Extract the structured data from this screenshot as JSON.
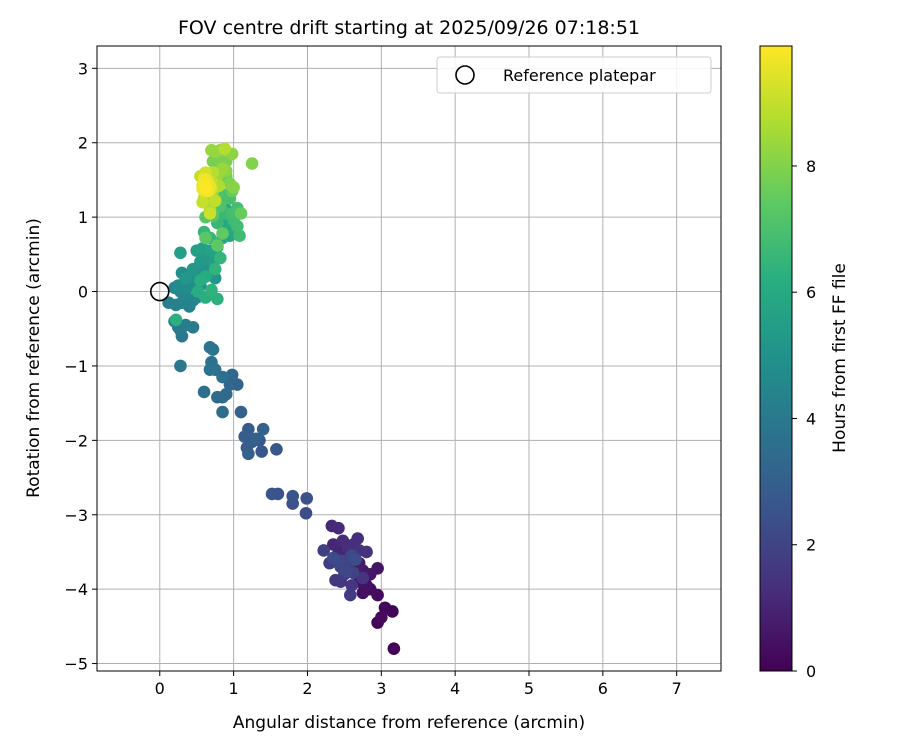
{
  "chart_data": {
    "type": "scatter",
    "title": "FOV centre drift starting at 2025/09/26 07:18:51",
    "xlabel": "Angular distance from reference (arcmin)",
    "ylabel": "Rotation from reference (arcmin)",
    "xlim": [
      -0.85,
      7.6
    ],
    "ylim": [
      -5.1,
      3.3
    ],
    "xticks": [
      0,
      1,
      2,
      3,
      4,
      5,
      6,
      7
    ],
    "yticks": [
      -5,
      -4,
      -3,
      -2,
      -1,
      0,
      1,
      2,
      3
    ],
    "grid": true,
    "legend": {
      "placement": "upper-right",
      "entries": [
        "Reference platepar"
      ]
    },
    "reference_point": {
      "x": 0,
      "y": 0
    },
    "colorbar": {
      "label": "Hours from first FF file",
      "min": 0,
      "max": 9.9,
      "ticks": [
        0,
        2,
        4,
        6,
        8
      ],
      "colormap": "viridis"
    },
    "points": [
      [
        3.17,
        -4.8,
        0.05
      ],
      [
        2.95,
        -4.45,
        0.1
      ],
      [
        3.15,
        -4.3,
        0.15
      ],
      [
        3.05,
        -4.25,
        0.2
      ],
      [
        3.0,
        -4.38,
        0.25
      ],
      [
        2.95,
        -4.08,
        0.3
      ],
      [
        2.85,
        -4.0,
        0.35
      ],
      [
        2.75,
        -4.05,
        0.4
      ],
      [
        2.8,
        -3.95,
        0.45
      ],
      [
        2.7,
        -3.9,
        0.5
      ],
      [
        2.95,
        -3.72,
        0.55
      ],
      [
        2.85,
        -3.8,
        0.6
      ],
      [
        2.75,
        -3.75,
        0.65
      ],
      [
        2.7,
        -3.65,
        0.7
      ],
      [
        2.65,
        -3.7,
        0.75
      ],
      [
        2.6,
        -3.6,
        0.8
      ],
      [
        2.55,
        -3.55,
        0.85
      ],
      [
        2.5,
        -3.5,
        0.9
      ],
      [
        2.45,
        -3.45,
        0.95
      ],
      [
        2.4,
        -3.55,
        1.0
      ],
      [
        2.35,
        -3.4,
        1.05
      ],
      [
        2.33,
        -3.15,
        1.1
      ],
      [
        2.42,
        -3.18,
        1.15
      ],
      [
        2.48,
        -3.35,
        1.2
      ],
      [
        2.55,
        -3.45,
        1.25
      ],
      [
        2.68,
        -3.32,
        1.3
      ],
      [
        2.62,
        -3.4,
        1.35
      ],
      [
        2.7,
        -3.48,
        1.4
      ],
      [
        2.8,
        -3.5,
        1.45
      ],
      [
        2.75,
        -3.85,
        1.5
      ],
      [
        2.6,
        -3.95,
        1.55
      ],
      [
        2.45,
        -3.9,
        1.6
      ],
      [
        2.38,
        -3.88,
        1.65
      ],
      [
        2.58,
        -4.08,
        1.7
      ],
      [
        2.5,
        -3.8,
        1.75
      ],
      [
        2.3,
        -3.65,
        1.8
      ],
      [
        2.22,
        -3.48,
        1.85
      ],
      [
        2.55,
        -3.68,
        1.9
      ],
      [
        2.62,
        -3.78,
        1.95
      ],
      [
        2.45,
        -3.7,
        2.0
      ],
      [
        2.5,
        -3.62,
        2.05
      ],
      [
        2.52,
        -3.76,
        2.1
      ],
      [
        2.42,
        -3.62,
        2.15
      ],
      [
        2.6,
        -3.55,
        2.2
      ],
      [
        2.35,
        -3.58,
        2.25
      ],
      [
        2.65,
        -3.6,
        2.3
      ],
      [
        1.98,
        -2.98,
        2.35
      ],
      [
        1.99,
        -2.78,
        2.4
      ],
      [
        1.8,
        -2.85,
        2.45
      ],
      [
        1.8,
        -2.75,
        2.5
      ],
      [
        1.6,
        -2.72,
        2.55
      ],
      [
        1.52,
        -2.72,
        2.6
      ],
      [
        1.58,
        -2.12,
        2.65
      ],
      [
        1.38,
        -2.15,
        2.7
      ],
      [
        1.35,
        -2.0,
        2.75
      ],
      [
        1.25,
        -2.02,
        2.8
      ],
      [
        1.2,
        -1.85,
        2.85
      ],
      [
        1.15,
        -1.95,
        2.9
      ],
      [
        1.18,
        -2.1,
        2.95
      ],
      [
        1.2,
        -2.18,
        3.0
      ],
      [
        1.3,
        -1.98,
        3.05
      ],
      [
        1.4,
        -1.85,
        3.1
      ],
      [
        1.1,
        -1.62,
        3.15
      ],
      [
        1.05,
        -1.25,
        3.2
      ],
      [
        0.95,
        -1.25,
        3.25
      ],
      [
        0.98,
        -1.12,
        3.3
      ],
      [
        0.9,
        -1.38,
        3.35
      ],
      [
        0.85,
        -1.42,
        3.4
      ],
      [
        0.78,
        -1.42,
        3.45
      ],
      [
        0.85,
        -1.62,
        3.5
      ],
      [
        0.6,
        -1.35,
        3.55
      ],
      [
        0.85,
        -1.15,
        3.6
      ],
      [
        0.75,
        -1.05,
        3.65
      ],
      [
        0.7,
        -0.95,
        3.7
      ],
      [
        0.68,
        -1.05,
        3.75
      ],
      [
        0.72,
        -0.78,
        3.8
      ],
      [
        0.68,
        -0.75,
        3.85
      ],
      [
        0.28,
        -1.0,
        3.9
      ],
      [
        0.3,
        -0.6,
        3.95
      ],
      [
        0.28,
        -0.52,
        4.0
      ],
      [
        0.45,
        -0.48,
        4.05
      ],
      [
        0.25,
        -0.48,
        4.1
      ],
      [
        0.35,
        -0.45,
        4.15
      ],
      [
        0.2,
        -0.4,
        4.2
      ],
      [
        0.12,
        -0.15,
        4.25
      ],
      [
        0.22,
        -0.18,
        4.3
      ],
      [
        0.3,
        -0.15,
        4.35
      ],
      [
        0.4,
        -0.2,
        4.4
      ],
      [
        0.45,
        -0.12,
        4.45
      ],
      [
        0.5,
        -0.08,
        4.5
      ],
      [
        0.35,
        -0.05,
        4.55
      ],
      [
        0.28,
        0.0,
        4.6
      ],
      [
        0.2,
        0.05,
        4.65
      ],
      [
        0.25,
        0.08,
        4.7
      ],
      [
        0.38,
        0.05,
        4.75
      ],
      [
        0.45,
        0.12,
        4.8
      ],
      [
        0.55,
        0.08,
        4.85
      ],
      [
        0.3,
        0.25,
        4.9
      ],
      [
        0.42,
        0.2,
        4.95
      ],
      [
        0.5,
        0.28,
        5.0
      ],
      [
        0.6,
        0.35,
        5.05
      ],
      [
        0.68,
        0.22,
        5.1
      ],
      [
        0.75,
        0.18,
        5.15
      ],
      [
        0.35,
        0.18,
        5.2
      ],
      [
        0.45,
        0.3,
        5.25
      ],
      [
        0.55,
        0.4,
        5.3
      ],
      [
        0.62,
        0.45,
        5.35
      ],
      [
        0.72,
        0.4,
        5.4
      ],
      [
        0.8,
        0.45,
        5.45
      ],
      [
        0.28,
        0.52,
        5.5
      ],
      [
        0.5,
        0.55,
        5.55
      ],
      [
        0.58,
        0.58,
        5.6
      ],
      [
        0.68,
        0.55,
        5.65
      ],
      [
        0.78,
        0.6,
        5.7
      ],
      [
        0.85,
        0.72,
        5.75
      ],
      [
        0.95,
        0.75,
        5.8
      ],
      [
        0.92,
        0.9,
        5.85
      ],
      [
        0.85,
        1.0,
        5.9
      ],
      [
        0.9,
        1.1,
        5.95
      ],
      [
        0.95,
        0.85,
        6.0
      ],
      [
        0.62,
        0.2,
        6.05
      ],
      [
        0.55,
        0.15,
        6.1
      ],
      [
        0.52,
        0.0,
        6.15
      ],
      [
        0.62,
        -0.08,
        6.2
      ],
      [
        0.22,
        -0.38,
        6.25
      ],
      [
        0.78,
        -0.1,
        6.3
      ],
      [
        0.7,
        0.02,
        6.35
      ],
      [
        0.75,
        0.3,
        6.4
      ],
      [
        0.82,
        0.45,
        6.45
      ],
      [
        0.68,
        0.72,
        6.5
      ],
      [
        0.6,
        0.8,
        6.55
      ],
      [
        0.78,
        0.92,
        6.6
      ],
      [
        0.88,
        1.05,
        6.65
      ],
      [
        1.0,
        0.95,
        6.7
      ],
      [
        1.08,
        0.75,
        6.75
      ],
      [
        1.05,
        0.88,
        6.8
      ],
      [
        0.98,
        1.05,
        6.85
      ],
      [
        1.05,
        1.12,
        6.9
      ],
      [
        0.95,
        1.25,
        6.95
      ],
      [
        0.88,
        1.3,
        7.0
      ],
      [
        0.82,
        1.15,
        7.05
      ],
      [
        0.78,
        1.3,
        7.1
      ],
      [
        0.7,
        1.35,
        7.15
      ],
      [
        0.68,
        1.2,
        7.2
      ],
      [
        0.62,
        1.0,
        7.25
      ],
      [
        0.72,
        1.02,
        7.3
      ],
      [
        0.62,
        0.72,
        7.35
      ],
      [
        0.78,
        0.62,
        7.4
      ],
      [
        0.85,
        0.78,
        7.45
      ],
      [
        0.98,
        1.35,
        7.5
      ],
      [
        1.1,
        1.05,
        7.55
      ],
      [
        0.9,
        1.55,
        7.6
      ],
      [
        0.82,
        1.52,
        7.65
      ],
      [
        0.75,
        1.62,
        7.7
      ],
      [
        0.68,
        1.45,
        7.75
      ],
      [
        0.72,
        1.75,
        7.8
      ],
      [
        0.78,
        1.8,
        7.85
      ],
      [
        0.9,
        1.75,
        7.9
      ],
      [
        0.95,
        1.45,
        7.95
      ],
      [
        1.25,
        1.72,
        8.0
      ],
      [
        1.0,
        1.4,
        8.05
      ],
      [
        0.9,
        1.62,
        8.1
      ],
      [
        0.98,
        1.85,
        8.15
      ],
      [
        0.82,
        1.9,
        8.2
      ],
      [
        0.75,
        1.88,
        8.25
      ],
      [
        0.7,
        1.9,
        8.3
      ],
      [
        0.85,
        1.65,
        8.35
      ],
      [
        0.78,
        1.55,
        8.4
      ],
      [
        0.72,
        1.35,
        8.45
      ],
      [
        0.65,
        1.3,
        8.5
      ],
      [
        0.6,
        1.25,
        8.55
      ],
      [
        0.68,
        1.1,
        8.6
      ],
      [
        0.62,
        1.38,
        8.65
      ],
      [
        0.8,
        1.42,
        8.7
      ],
      [
        0.88,
        1.92,
        8.75
      ],
      [
        0.72,
        1.6,
        8.8
      ],
      [
        0.65,
        1.55,
        8.85
      ],
      [
        0.7,
        1.48,
        8.9
      ],
      [
        0.75,
        1.22,
        8.95
      ],
      [
        0.55,
        1.55,
        9.0
      ],
      [
        0.58,
        1.2,
        9.05
      ],
      [
        0.68,
        1.05,
        9.1
      ],
      [
        0.58,
        1.42,
        9.15
      ],
      [
        0.62,
        1.6,
        9.2
      ],
      [
        0.7,
        1.38,
        9.25
      ],
      [
        0.6,
        1.48,
        9.3
      ],
      [
        0.65,
        1.5,
        9.35
      ],
      [
        0.6,
        1.35,
        9.4
      ],
      [
        0.65,
        1.4,
        9.45
      ],
      [
        0.62,
        1.45,
        9.5
      ],
      [
        0.6,
        1.52,
        9.55
      ],
      [
        0.68,
        1.42,
        9.6
      ],
      [
        0.58,
        1.38,
        9.65
      ],
      [
        0.62,
        1.5,
        9.7
      ],
      [
        0.65,
        1.35,
        9.75
      ],
      [
        0.6,
        1.45,
        9.8
      ],
      [
        0.62,
        1.4,
        9.85
      ]
    ],
    "points_format": [
      "x",
      "y",
      "hours"
    ]
  }
}
